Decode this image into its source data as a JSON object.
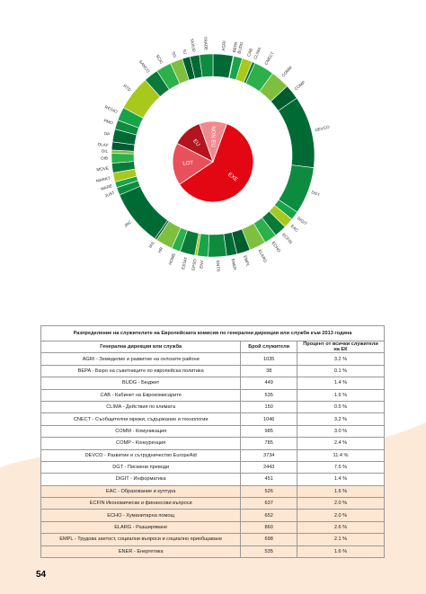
{
  "chart_data": {
    "type": "donut",
    "categories": [
      "AGRI",
      "BEPA",
      "BUDG",
      "CAB",
      "CLIMA",
      "CNECT",
      "COMM",
      "COMP",
      "DEVCO",
      "DGT",
      "DIGIT",
      "EAC",
      "ECFIN",
      "ECHO",
      "ELARG",
      "EMPL",
      "ENER",
      "ENTR",
      "ENV",
      "EPSO",
      "ESTAT",
      "HOME",
      "HR",
      "IAS",
      "JRC",
      "JUST",
      "MARE",
      "MARKT",
      "MOVE",
      "OIB",
      "OIL",
      "OLAF",
      "OP",
      "PMO",
      "REGIO",
      "RTD",
      "SANCO",
      "SCIC",
      "SG",
      "SJ",
      "TAXUD",
      "TRADE"
    ],
    "values": [
      1035,
      38,
      449,
      535,
      150,
      1046,
      985,
      785,
      3734,
      2443,
      451,
      526,
      637,
      652,
      860,
      698,
      535,
      950,
      560,
      130,
      770,
      460,
      880,
      110,
      2900,
      400,
      300,
      480,
      500,
      500,
      170,
      420,
      660,
      480,
      700,
      1800,
      760,
      790,
      650,
      400,
      490,
      700
    ],
    "colors": [
      "#006a35",
      "#0d8c3f",
      "#1aa44a",
      "#a8c81c",
      "#0a7a3a",
      "#2bb04a",
      "#7fbf3f",
      "#005c2e"
    ],
    "inner": {
      "categories": [
        "EXE",
        "LOT",
        "EU",
        "NON EU"
      ],
      "values": [
        60,
        17,
        12,
        11
      ],
      "colors": [
        "#e30613",
        "#e8505b",
        "#b3141d",
        "#f08a8f"
      ]
    }
  },
  "table": {
    "title": "Разпределение на служителите на Европейската комисия по генерални дирекции или служби към 2013 година",
    "header": [
      "Генерална дирекция или служба",
      "Брой служители",
      "Процент от всички служители на ЕК"
    ],
    "rows": [
      [
        "AGRI - Земеделие и развитие на селските райони",
        1035,
        "3.2 %"
      ],
      [
        "BEPA - Бюро на съветниците по европейска политика",
        38,
        "0.1 %"
      ],
      [
        "BUDG - Бюджет",
        449,
        "1.4 %"
      ],
      [
        "CAB - Кабинет на Еврокомисарите",
        535,
        "1.6 %"
      ],
      [
        "CLIMA - Действия по климата",
        150,
        "0.5 %"
      ],
      [
        "CNECT - Съобщителни мрежи, съдържание и технологии",
        1046,
        "3.2 %"
      ],
      [
        "COMM - Комуникация",
        985,
        "3.0 %"
      ],
      [
        "COMP - Конкуренция",
        785,
        "2.4 %"
      ],
      [
        "DEVCO - Развитие и сътрудничество EuropeAid",
        3734,
        "11.4 %"
      ],
      [
        "DGT - Писмени преводи",
        2443,
        "7.5 %"
      ],
      [
        "DIGIT - Информатика",
        451,
        "1.4 %"
      ],
      [
        "EAC - Образование и култура",
        526,
        "1.6 %"
      ],
      [
        "ECFIN Икономически и финансови въпроси",
        637,
        "2.0 %"
      ],
      [
        "ECHO - Хуманитарна помощ",
        652,
        "2.0 %"
      ],
      [
        "ELARG - Разширяване",
        860,
        "2.6 %"
      ],
      [
        "EMPL - Трудова заетост, социални въпроси и социално приобщаване",
        698,
        "2.1 %"
      ],
      [
        "ENER - Енергетика",
        535,
        "1.6 %"
      ]
    ]
  },
  "page_number": "54"
}
